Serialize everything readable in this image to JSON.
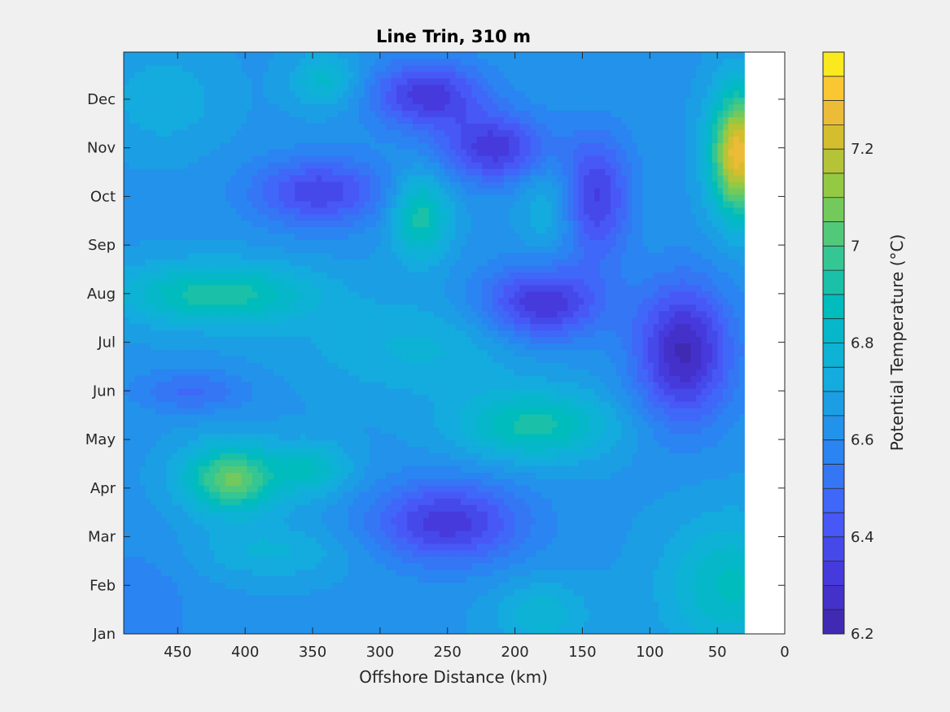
{
  "chart_data": {
    "type": "heatmap",
    "title": "Line Trin, 310 m",
    "xlabel": "Offshore Distance (km)",
    "colorbar_label": "Potential Temperature (°C)",
    "x_reversed": true,
    "xlim": [
      0,
      490
    ],
    "x_ticks": [
      450,
      400,
      350,
      300,
      250,
      200,
      150,
      100,
      50,
      0
    ],
    "y_ticks": [
      "Jan",
      "Feb",
      "Mar",
      "Apr",
      "May",
      "Jun",
      "Jul",
      "Aug",
      "Sep",
      "Oct",
      "Nov",
      "Dec"
    ],
    "y_months": [
      1,
      2,
      3,
      4,
      5,
      6,
      7,
      8,
      9,
      10,
      11,
      12
    ],
    "ylim": [
      1,
      12.97
    ],
    "clim": [
      6.2,
      7.4
    ],
    "colorbar_ticks": [
      6.2,
      6.4,
      6.6,
      6.8,
      7,
      7.2
    ],
    "colorbar_tick_labels": [
      "6.2",
      "6.4",
      "6.6",
      "6.8",
      "7",
      "7.2"
    ],
    "data_extent_km": [
      30,
      490
    ],
    "base_temperature": 6.64,
    "features": [
      {
        "x": 420,
        "month": 8.0,
        "sx": 50,
        "sy": 0.45,
        "amp": 0.3
      },
      {
        "x": 410,
        "month": 4.2,
        "sx": 25,
        "sy": 0.5,
        "amp": 0.42
      },
      {
        "x": 350,
        "month": 4.4,
        "sx": 20,
        "sy": 0.4,
        "amp": 0.2
      },
      {
        "x": 345,
        "month": 10.1,
        "sx": 35,
        "sy": 0.5,
        "amp": -0.28
      },
      {
        "x": 340,
        "month": 12.4,
        "sx": 18,
        "sy": 0.4,
        "amp": 0.18
      },
      {
        "x": 440,
        "month": 6.0,
        "sx": 30,
        "sy": 0.3,
        "amp": -0.15
      },
      {
        "x": 270,
        "month": 9.6,
        "sx": 15,
        "sy": 0.6,
        "amp": 0.3
      },
      {
        "x": 265,
        "month": 12.1,
        "sx": 30,
        "sy": 0.5,
        "amp": -0.32
      },
      {
        "x": 215,
        "month": 11.0,
        "sx": 28,
        "sy": 0.5,
        "amp": -0.32
      },
      {
        "x": 250,
        "month": 3.3,
        "sx": 40,
        "sy": 0.6,
        "amp": -0.32
      },
      {
        "x": 180,
        "month": 7.8,
        "sx": 32,
        "sy": 0.55,
        "amp": -0.35
      },
      {
        "x": 185,
        "month": 5.3,
        "sx": 40,
        "sy": 0.5,
        "amp": 0.28
      },
      {
        "x": 175,
        "month": 9.8,
        "sx": 15,
        "sy": 0.7,
        "amp": 0.12
      },
      {
        "x": 140,
        "month": 10.0,
        "sx": 18,
        "sy": 0.9,
        "amp": -0.3
      },
      {
        "x": 75,
        "month": 6.8,
        "sx": 25,
        "sy": 1.0,
        "amp": -0.4
      },
      {
        "x": 35,
        "month": 10.9,
        "sx": 14,
        "sy": 0.9,
        "amp": 0.65
      },
      {
        "x": 40,
        "month": 2.0,
        "sx": 35,
        "sy": 1.0,
        "amp": 0.22
      },
      {
        "x": 180,
        "month": 1.4,
        "sx": 25,
        "sy": 0.5,
        "amp": 0.15
      },
      {
        "x": 480,
        "month": 1.5,
        "sx": 30,
        "sy": 1.0,
        "amp": -0.08
      },
      {
        "x": 270,
        "month": 6.9,
        "sx": 60,
        "sy": 0.7,
        "amp": 0.12
      },
      {
        "x": 460,
        "month": 12.0,
        "sx": 30,
        "sy": 0.7,
        "amp": 0.1
      },
      {
        "x": 380,
        "month": 2.7,
        "sx": 40,
        "sy": 0.4,
        "amp": 0.12
      }
    ]
  }
}
